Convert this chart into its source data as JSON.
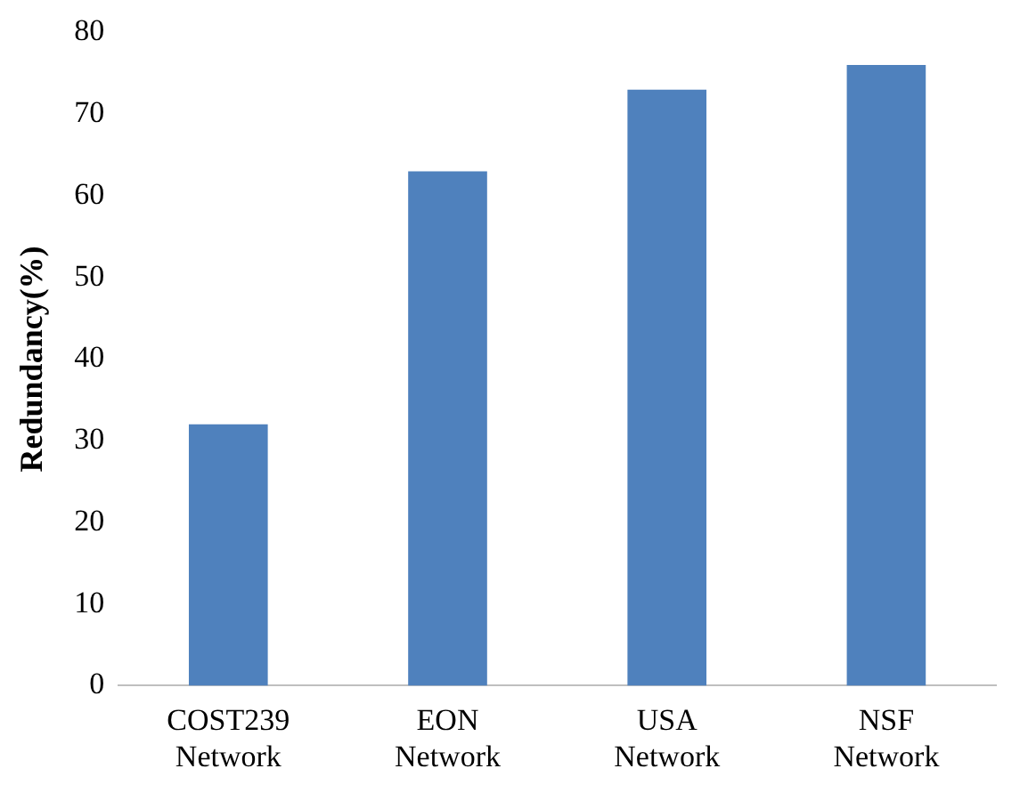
{
  "chart_data": {
    "type": "bar",
    "ylabel": "Redundancy(%)",
    "categories": [
      "COST239 Network",
      "EON Network",
      "USA Network",
      "NSF Network"
    ],
    "values": [
      32,
      63,
      73,
      76
    ],
    "color": "#4f81bd",
    "ylim": [
      0,
      80
    ],
    "yticks": [
      0,
      10,
      20,
      30,
      40,
      50,
      60,
      70,
      80
    ],
    "grid": false,
    "legend": false
  }
}
